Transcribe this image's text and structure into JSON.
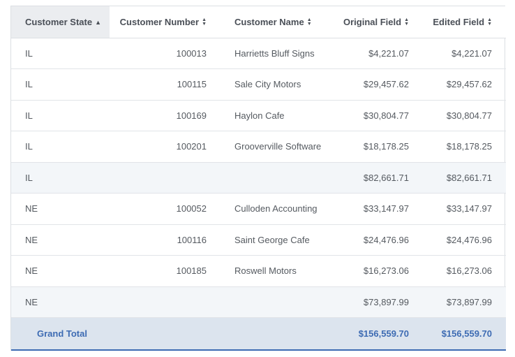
{
  "columns": [
    {
      "label": "Customer State",
      "sort": "asc",
      "align": "left"
    },
    {
      "label": "Customer Number",
      "sort": "both",
      "align": "right"
    },
    {
      "label": "Customer Name",
      "sort": "both",
      "align": "left"
    },
    {
      "label": "Original Field",
      "sort": "both",
      "align": "right"
    },
    {
      "label": "Edited Field",
      "sort": "both",
      "align": "right"
    }
  ],
  "sort_icons": {
    "asc": "▲",
    "up": "▲",
    "down": "▼"
  },
  "rows": [
    {
      "state": "IL",
      "number": "100013",
      "name": "Harrietts Bluff Signs",
      "original": "$4,221.07",
      "edited": "$4,221.07"
    },
    {
      "state": "IL",
      "number": "100115",
      "name": "Sale City Motors",
      "original": "$29,457.62",
      "edited": "$29,457.62"
    },
    {
      "state": "IL",
      "number": "100169",
      "name": "Haylon Cafe",
      "original": "$30,804.77",
      "edited": "$30,804.77"
    },
    {
      "state": "IL",
      "number": "100201",
      "name": "Grooverville Software",
      "original": "$18,178.25",
      "edited": "$18,178.25"
    },
    {
      "state": "IL",
      "number": "",
      "name": "",
      "original": "$82,661.71",
      "edited": "$82,661.71",
      "subtotal": true
    },
    {
      "state": "NE",
      "number": "100052",
      "name": "Culloden Accounting",
      "original": "$33,147.97",
      "edited": "$33,147.97"
    },
    {
      "state": "NE",
      "number": "100116",
      "name": "Saint George Cafe",
      "original": "$24,476.96",
      "edited": "$24,476.96"
    },
    {
      "state": "NE",
      "number": "100185",
      "name": "Roswell Motors",
      "original": "$16,273.06",
      "edited": "$16,273.06"
    },
    {
      "state": "NE",
      "number": "",
      "name": "",
      "original": "$73,897.99",
      "edited": "$73,897.99",
      "subtotal": true
    }
  ],
  "grand_total": {
    "label": "Grand Total",
    "original": "$156,559.70",
    "edited": "$156,559.70"
  },
  "colors": {
    "grand_total_text": "#3d6bb3",
    "grand_total_bg": "#dce4ee",
    "subtotal_bg": "#f3f6f9",
    "sorted_header_bg": "#ebedf0"
  }
}
